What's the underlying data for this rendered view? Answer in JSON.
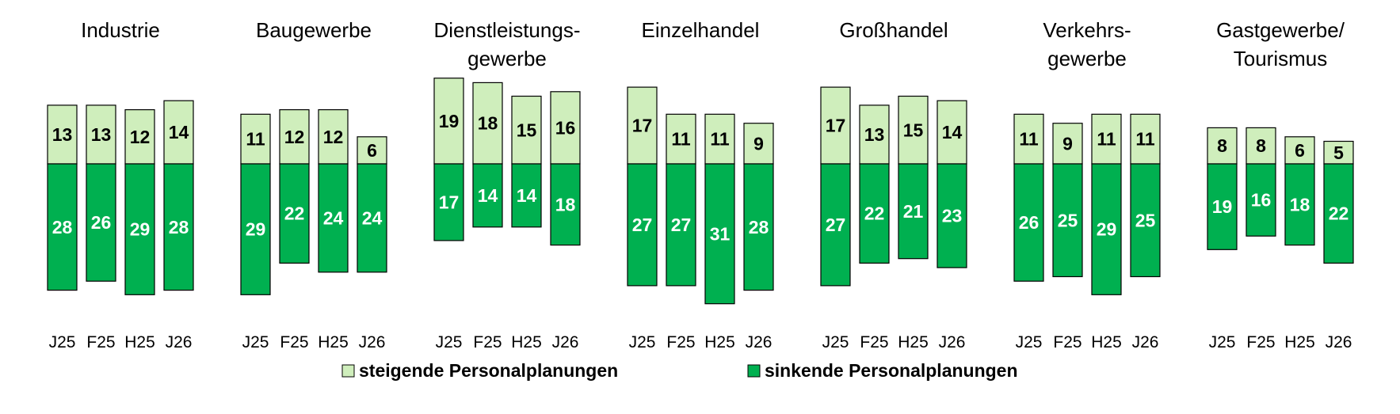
{
  "chart_data": {
    "type": "bar",
    "stacking": "diverging",
    "colors": {
      "rising": "#cfeebc",
      "falling": "#00b050",
      "outline": "#000000"
    },
    "legend": {
      "placement": "bottom-center",
      "entries": [
        {
          "key": "rising",
          "label": "steigende Personalplanungen"
        },
        {
          "key": "falling",
          "label": "sinkende Personalplanungen"
        }
      ]
    },
    "categories": [
      "J25",
      "F25",
      "H25",
      "J26"
    ],
    "panels": [
      {
        "title": [
          "Industrie"
        ],
        "rising": [
          13,
          13,
          12,
          14
        ],
        "falling": [
          28,
          26,
          29,
          28
        ]
      },
      {
        "title": [
          "Baugewerbe"
        ],
        "rising": [
          11,
          12,
          12,
          6
        ],
        "falling": [
          29,
          22,
          24,
          24
        ]
      },
      {
        "title": [
          "Dienstleistungs-",
          "gewerbe"
        ],
        "rising": [
          19,
          18,
          15,
          16
        ],
        "falling": [
          17,
          14,
          14,
          18
        ]
      },
      {
        "title": [
          "Einzelhandel"
        ],
        "rising": [
          17,
          11,
          11,
          9
        ],
        "falling": [
          27,
          27,
          31,
          28
        ]
      },
      {
        "title": [
          "Großhandel"
        ],
        "rising": [
          17,
          13,
          15,
          14
        ],
        "falling": [
          27,
          22,
          21,
          23
        ]
      },
      {
        "title": [
          "Verkehrs-",
          "gewerbe"
        ],
        "rising": [
          11,
          9,
          11,
          11
        ],
        "falling": [
          26,
          25,
          29,
          25
        ]
      },
      {
        "title": [
          "Gastgewerbe/",
          "Tourismus"
        ],
        "rising": [
          8,
          8,
          6,
          5
        ],
        "falling": [
          19,
          16,
          18,
          22
        ]
      }
    ]
  }
}
